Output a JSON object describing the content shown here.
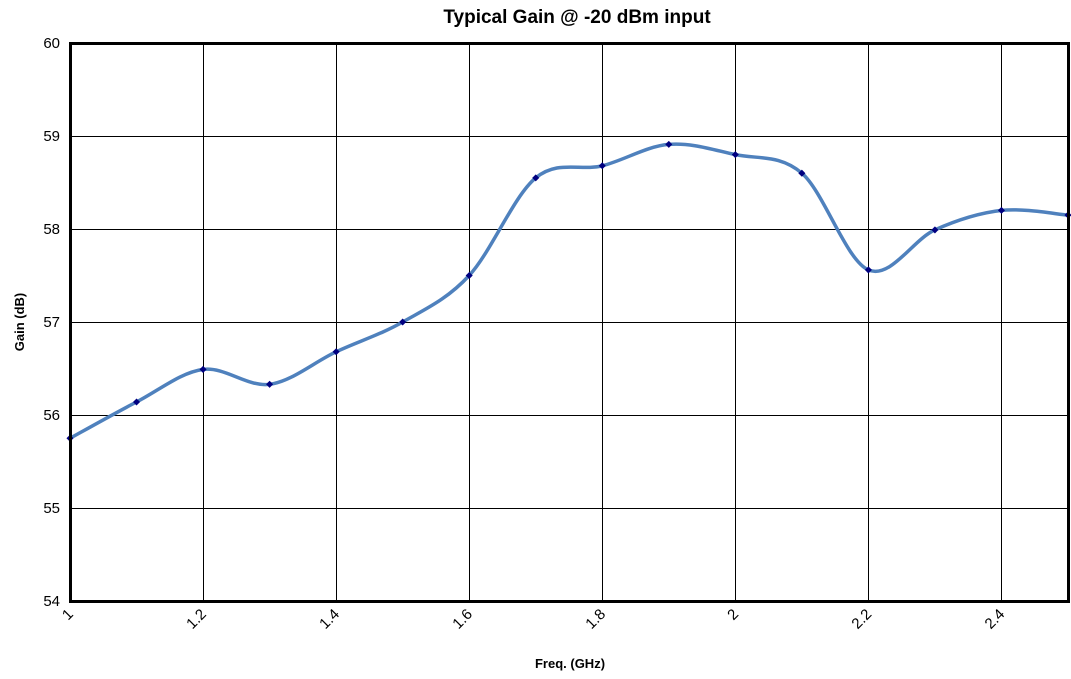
{
  "chart_data": {
    "type": "line",
    "title": "Typical Gain @ -20 dBm input",
    "xlabel": "Freq. (GHz)",
    "ylabel": "Gain (dB)",
    "xlim": [
      1,
      2.5
    ],
    "ylim": [
      54,
      60
    ],
    "x_ticks": [
      1,
      1.2,
      1.4,
      1.6,
      1.8,
      2,
      2.2,
      2.4
    ],
    "x_tick_labels": [
      "1",
      "1.2",
      "1.4",
      "1.6",
      "1.8",
      "2",
      "2.2",
      "2.4"
    ],
    "y_ticks": [
      54,
      55,
      56,
      57,
      58,
      59,
      60
    ],
    "y_tick_labels": [
      "54",
      "55",
      "56",
      "57",
      "58",
      "59",
      "60"
    ],
    "grid": true,
    "legend": "none",
    "series": [
      {
        "x": [
          1.0,
          1.1,
          1.2,
          1.3,
          1.4,
          1.5,
          1.6,
          1.7,
          1.8,
          1.9,
          2.0,
          2.1,
          2.2,
          2.3,
          2.4,
          2.5
        ],
        "y": [
          55.75,
          56.14,
          56.49,
          56.33,
          56.68,
          57.0,
          57.5,
          58.55,
          58.68,
          58.91,
          58.8,
          58.6,
          57.56,
          57.99,
          58.2,
          58.15
        ],
        "line_color": "#4f81bd",
        "marker_color": "#000080"
      }
    ]
  }
}
